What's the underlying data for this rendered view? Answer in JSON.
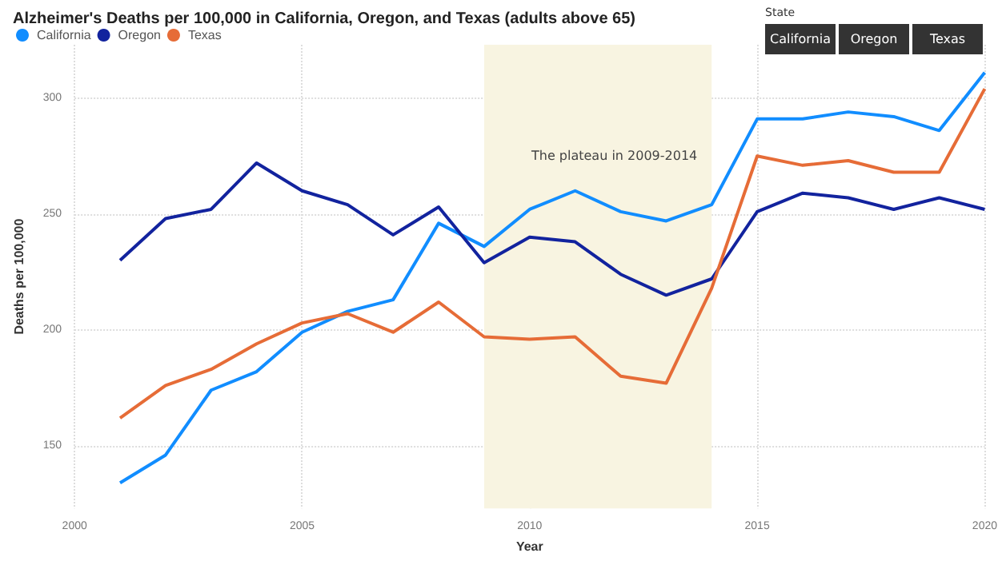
{
  "chart_data": {
    "type": "line",
    "title": "Alzheimer's Deaths per 100,000 in California, Oregon, and Texas (adults above 65)",
    "xlabel": "Year",
    "ylabel": "Deaths per 100,000",
    "legend_title": "State",
    "x": [
      2001,
      2002,
      2003,
      2004,
      2005,
      2006,
      2007,
      2008,
      2009,
      2010,
      2011,
      2012,
      2013,
      2014,
      2015,
      2016,
      2017,
      2018,
      2019,
      2020
    ],
    "series": [
      {
        "name": "California",
        "color": "#118dff",
        "values": [
          134,
          146,
          174,
          182,
          199,
          208,
          213,
          246,
          236,
          252,
          260,
          251,
          247,
          254,
          291,
          291,
          294,
          292,
          286,
          311
        ]
      },
      {
        "name": "Oregon",
        "color": "#12239e",
        "values": [
          230,
          248,
          252,
          272,
          260,
          254,
          241,
          253,
          229,
          240,
          238,
          224,
          215,
          222,
          251,
          259,
          257,
          252,
          257,
          252
        ]
      },
      {
        "name": "Texas",
        "color": "#e66c37",
        "values": [
          162,
          176,
          183,
          194,
          203,
          207,
          199,
          212,
          197,
          196,
          197,
          180,
          177,
          218,
          275,
          271,
          273,
          268,
          268,
          304
        ]
      }
    ],
    "xlim": [
      2000,
      2020
    ],
    "xticks": [
      2000,
      2005,
      2010,
      2015,
      2020
    ],
    "ylim": [
      123,
      323
    ],
    "yticks": [
      150,
      200,
      250,
      300
    ],
    "bands": [
      {
        "axis": "x",
        "from": 2009,
        "to": 2014,
        "color": "#f8f4e1"
      }
    ],
    "annotations": [
      "The plateau in 2009-2014"
    ],
    "grid": true,
    "legend": "top left",
    "marker": "none",
    "line_style": "solid"
  }
}
